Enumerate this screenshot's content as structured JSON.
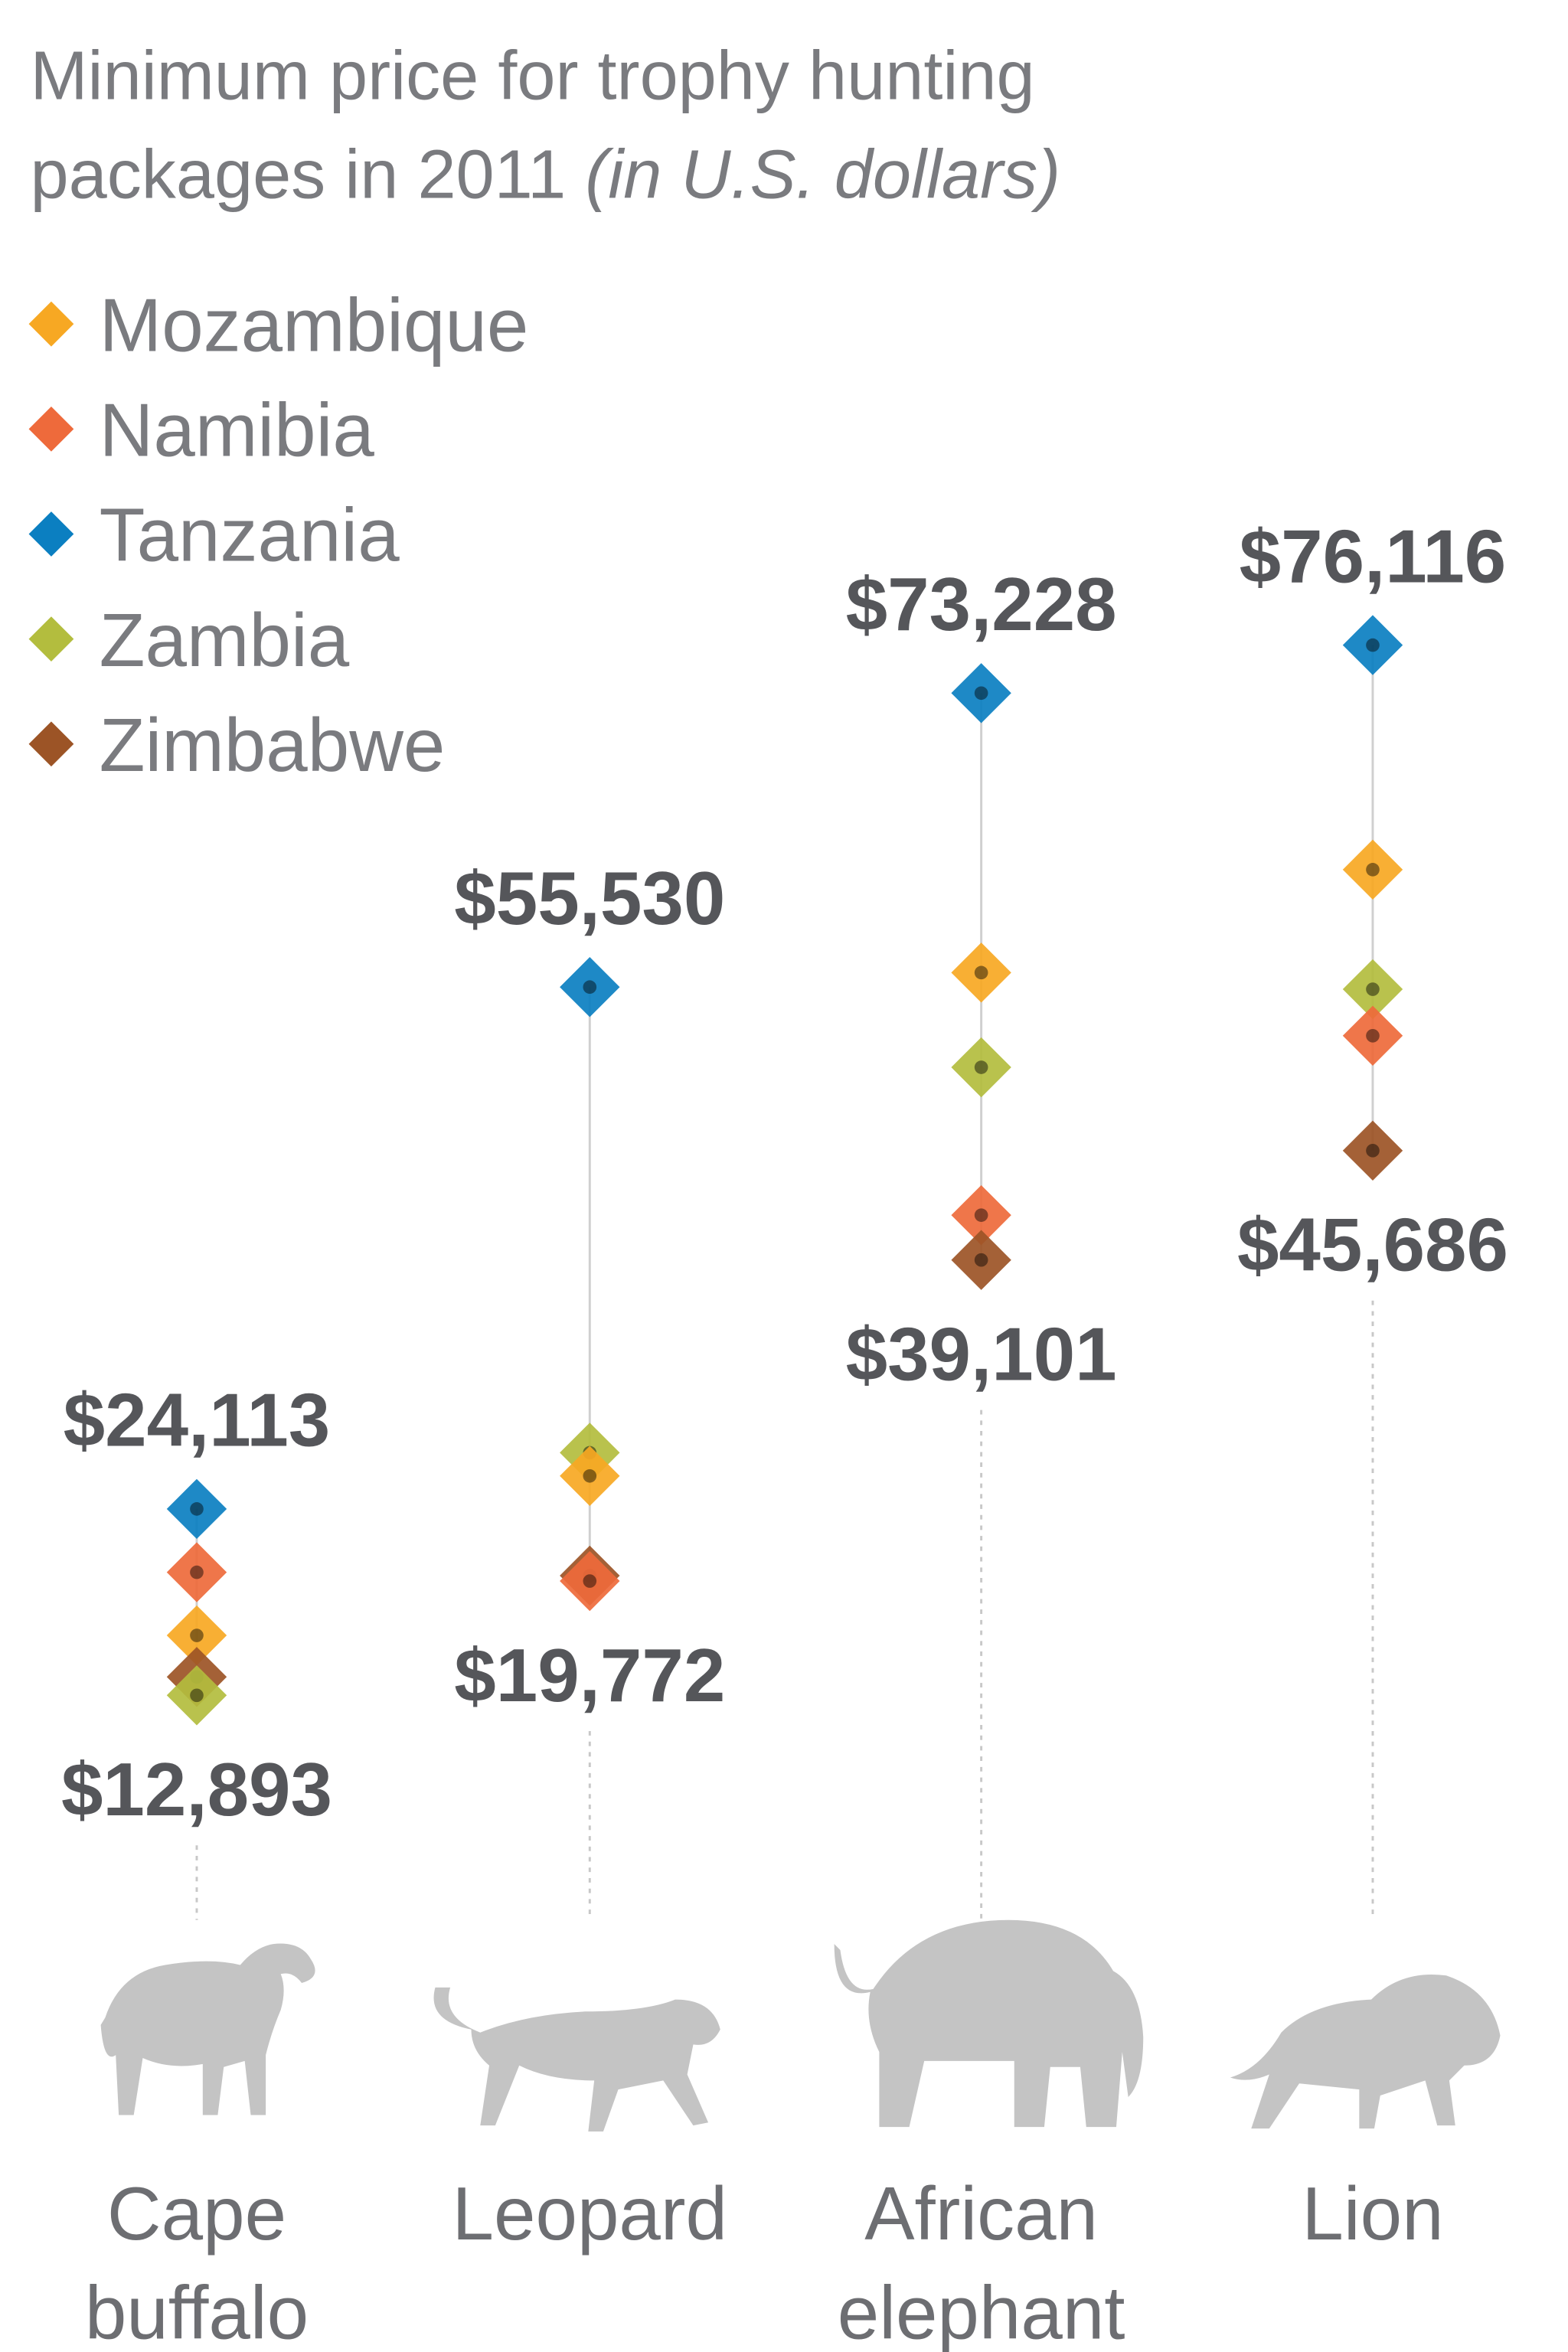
{
  "chart_data": {
    "type": "dot-range",
    "title": "Minimum price for trophy hunting",
    "title_line2": "packages in 2011 ",
    "title_unit": "(in U.S. dollars)",
    "categories": [
      {
        "label": [
          "Cape",
          "buffalo"
        ],
        "icon": "cape-buffalo-icon",
        "max_label": "$24,113",
        "min_label": "$12,893"
      },
      {
        "label": [
          "Leopard"
        ],
        "icon": "leopard-icon",
        "max_label": "$55,530",
        "min_label": "$19,772"
      },
      {
        "label": [
          "African",
          "elephant"
        ],
        "icon": "elephant-icon",
        "max_label": "$73,228",
        "min_label": "$39,101"
      },
      {
        "label": [
          "Lion"
        ],
        "icon": "lion-icon",
        "max_label": "$76,116",
        "min_label": "$45,686"
      }
    ],
    "series": [
      {
        "name": "Mozambique",
        "color": "#f7a823",
        "values": [
          16500,
          26100,
          56400,
          62600
        ]
      },
      {
        "name": "Namibia",
        "color": "#ee6a3b",
        "values": [
          20300,
          19772,
          41800,
          52600
        ]
      },
      {
        "name": "Tanzania",
        "color": "#0b7fc1",
        "values": [
          24113,
          55530,
          73228,
          76116
        ]
      },
      {
        "name": "Zambia",
        "color": "#b3bd3e",
        "values": [
          12893,
          27500,
          50700,
          55400
        ]
      },
      {
        "name": "Zimbabwe",
        "color": "#9c5426",
        "values": [
          14000,
          20100,
          39101,
          45686
        ]
      }
    ],
    "legend_position": "top-left",
    "grid": false,
    "axes_visible": false
  }
}
